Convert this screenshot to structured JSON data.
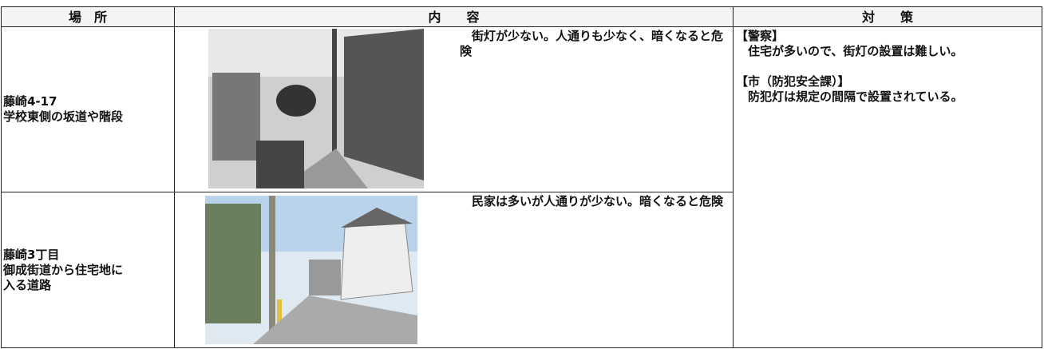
{
  "table": {
    "header": [
      "場　所",
      "内　　容",
      "対　　策"
    ],
    "rows": [
      {
        "location": [
          "藤崎4-17",
          "学校東側の坂道や階段"
        ],
        "content": "　街灯が少ない。人通りも少なく、暗くなると危険"
      },
      {
        "location": [
          "藤崎3丁目",
          "御成街道から住宅地に",
          "入る道路"
        ],
        "content": "　民家は多いが人通りが少ない。暗くなると危険"
      }
    ],
    "measures": [
      {
        "heading": "【警察】",
        "text": "　住宅が多いので、街灯の設置は難しい。"
      },
      {
        "heading": "【市（防犯安全課）】",
        "text": "　防犯灯は規定の間隔で設置されている。"
      }
    ]
  }
}
